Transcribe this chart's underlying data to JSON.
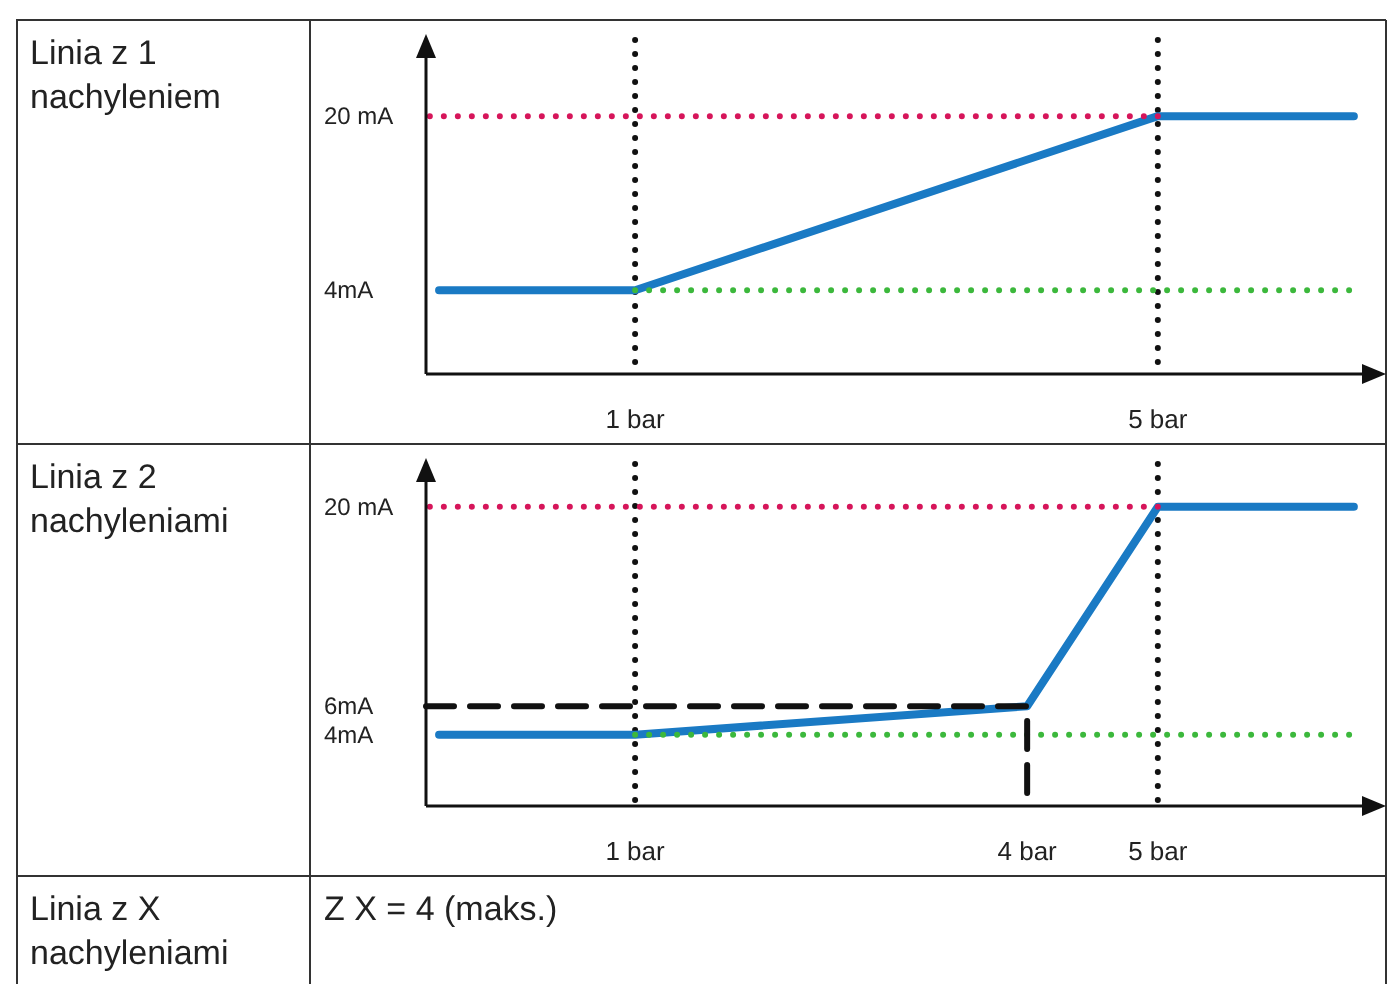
{
  "chart_data": [
    {
      "type": "line",
      "title": "Linia z 1 nachyleniem",
      "xlim": [
        -0.6,
        6.7
      ],
      "ylim": [
        -3.7,
        27
      ],
      "xticks": [
        {
          "value": 1,
          "label": "1 bar"
        },
        {
          "value": 5,
          "label": "5 bar"
        }
      ],
      "yticks": [
        {
          "value": 4,
          "label": "4mA"
        },
        {
          "value": 20,
          "label": "20 mA"
        }
      ],
      "ref_lines": [
        {
          "axis": "x",
          "value": 1,
          "color": "#111111",
          "line_style": "dotted"
        },
        {
          "axis": "x",
          "value": 5,
          "color": "#111111",
          "line_style": "dotted"
        }
      ],
      "series": [
        {
          "color": "#1a7ac4",
          "line_style": "solid",
          "x": [
            -0.5,
            1,
            5,
            6.5
          ],
          "values": [
            4,
            4,
            20,
            20
          ]
        },
        {
          "color": "#d6155a",
          "line_style": "dotted",
          "x": [
            5,
            -0.6
          ],
          "values": [
            20,
            20
          ]
        },
        {
          "color": "#3cb83c",
          "line_style": "dotted",
          "x": [
            1,
            6.5
          ],
          "values": [
            4,
            4
          ]
        }
      ]
    },
    {
      "type": "line",
      "title": "Linia z 2 nachyleniami",
      "xlim": [
        -0.6,
        6.7
      ],
      "ylim": [
        -1,
        23
      ],
      "xticks": [
        {
          "value": 1,
          "label": "1 bar"
        },
        {
          "value": 4,
          "label": "4 bar"
        },
        {
          "value": 5,
          "label": "5 bar"
        }
      ],
      "yticks": [
        {
          "value": 4,
          "label": "4mA"
        },
        {
          "value": 6,
          "label": "6mA"
        },
        {
          "value": 20,
          "label": "20 mA"
        }
      ],
      "ref_lines": [
        {
          "axis": "x",
          "value": 1,
          "color": "#111111",
          "line_style": "dotted"
        },
        {
          "axis": "x",
          "value": 5,
          "color": "#111111",
          "line_style": "dotted"
        }
      ],
      "series": [
        {
          "color": "#1a7ac4",
          "line_style": "solid",
          "x": [
            -0.5,
            1,
            4,
            5,
            6.5
          ],
          "values": [
            4,
            4,
            6,
            20,
            20
          ]
        },
        {
          "color": "#d6155a",
          "line_style": "dotted",
          "x": [
            5,
            -0.6
          ],
          "values": [
            20,
            20
          ]
        },
        {
          "color": "#3cb83c",
          "line_style": "dotted",
          "x": [
            1,
            6.5
          ],
          "values": [
            4,
            4
          ]
        },
        {
          "color": "#111111",
          "line_style": "dashed",
          "x": [
            -0.6,
            4,
            4
          ],
          "values": [
            6,
            6,
            -1
          ]
        }
      ]
    },
    {
      "type": "other",
      "title": "Linia z X nachyleniami",
      "annotations": [
        "Z X = 4 (maks.)"
      ]
    }
  ]
}
